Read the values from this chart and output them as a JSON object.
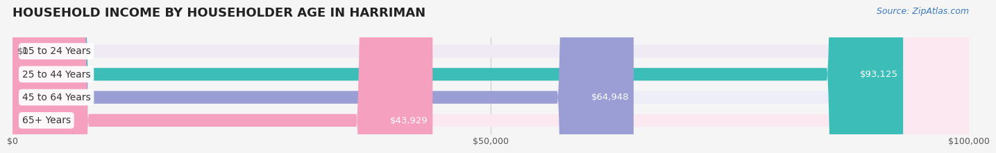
{
  "title": "HOUSEHOLD INCOME BY HOUSEHOLDER AGE IN HARRIMAN",
  "source": "Source: ZipAtlas.com",
  "categories": [
    "15 to 24 Years",
    "25 to 44 Years",
    "45 to 64 Years",
    "65+ Years"
  ],
  "values": [
    0,
    93125,
    64948,
    43929
  ],
  "bar_colors": [
    "#c9a8d4",
    "#3dbdb8",
    "#9b9ed4",
    "#f4a0be"
  ],
  "bar_bg_colors": [
    "#f0eaf4",
    "#e0f5f4",
    "#eeeef8",
    "#fce8f1"
  ],
  "value_labels": [
    "$0",
    "$93,125",
    "$64,948",
    "$43,929"
  ],
  "xlim": [
    0,
    100000
  ],
  "xtick_values": [
    0,
    50000,
    100000
  ],
  "xtick_labels": [
    "$0",
    "$50,000",
    "$100,000"
  ],
  "background_color": "#f5f5f5",
  "bar_height": 0.55,
  "label_fontsize": 10,
  "title_fontsize": 13,
  "source_fontsize": 9
}
